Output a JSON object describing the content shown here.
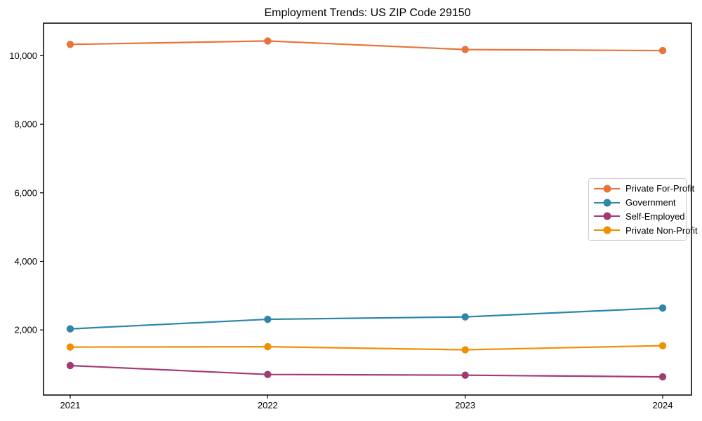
{
  "chart_data": {
    "type": "line",
    "title": "Employment Trends: US ZIP Code 29150",
    "xlabel": "",
    "ylabel": "",
    "x": [
      "2021",
      "2022",
      "2023",
      "2024"
    ],
    "series": [
      {
        "name": "Private For-Profit",
        "color": "#E8743B",
        "values": [
          10330,
          10430,
          10180,
          10150
        ]
      },
      {
        "name": "Government",
        "color": "#2E86AB",
        "values": [
          2030,
          2310,
          2380,
          2640
        ]
      },
      {
        "name": "Self-Employed",
        "color": "#A23B72",
        "values": [
          960,
          700,
          680,
          630
        ]
      },
      {
        "name": "Private Non-Profit",
        "color": "#F18F01",
        "values": [
          1500,
          1510,
          1420,
          1540
        ]
      }
    ],
    "ylim": [
      100,
      10950
    ],
    "yticks": [
      2000,
      4000,
      6000,
      8000,
      10000
    ],
    "ytick_labels": [
      "2,000",
      "4,000",
      "6,000",
      "8,000",
      "10,000"
    ],
    "grid": false,
    "legend_position": "center-right",
    "frame_color": "#000000",
    "text_color": "#000000"
  }
}
